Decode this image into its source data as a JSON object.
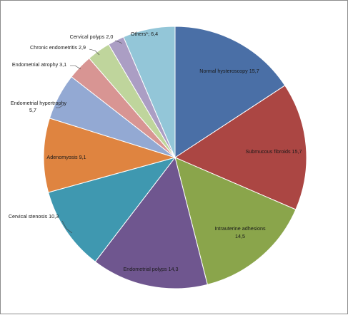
{
  "chart_data": {
    "type": "pie",
    "title": "",
    "start_angle_deg": 0,
    "direction": "clockwise",
    "slices": [
      {
        "label": "Normal hysteroscopy",
        "value": 15.7,
        "display": "Normal hysteroscopy 15,7",
        "color": "#4a6fa6"
      },
      {
        "label": "Submucous fibroids",
        "value": 15.7,
        "display": "Submucous fibroids 15,7",
        "color": "#ab4643"
      },
      {
        "label": "Intrauterine adhesions",
        "value": 14.5,
        "display": "Intrauterine adhesions 14,5",
        "color": "#8aa54b"
      },
      {
        "label": "Endometrial polyps",
        "value": 14.3,
        "display": "Endometrial polyps 14,3",
        "color": "#6f568f"
      },
      {
        "label": "Cervical stenosis",
        "value": 10.3,
        "display": "Cervical stenosis 10,3",
        "color": "#3f98b0"
      },
      {
        "label": "Adenomyosis",
        "value": 9.1,
        "display": "Adenomyosis 9,1",
        "color": "#df8440"
      },
      {
        "label": "Endometrial hypertrophy",
        "value": 5.7,
        "display": "Endometrial hypertrophy 5,7",
        "color": "#93a9d3"
      },
      {
        "label": "Endometrial atrophy",
        "value": 3.1,
        "display": "Endometrial atrophy 3,1",
        "color": "#d89593"
      },
      {
        "label": "Chronic endometritis",
        "value": 2.9,
        "display": "Chronic endometritis 2,9",
        "color": "#bfd59c"
      },
      {
        "label": "Cervical polyps",
        "value": 2.0,
        "display": "Cervical polyps 2,0",
        "color": "#ab9ec4"
      },
      {
        "label": "Others*",
        "value": 6.4,
        "display": "Others*; 6,4",
        "color": "#93c6d8"
      }
    ]
  }
}
